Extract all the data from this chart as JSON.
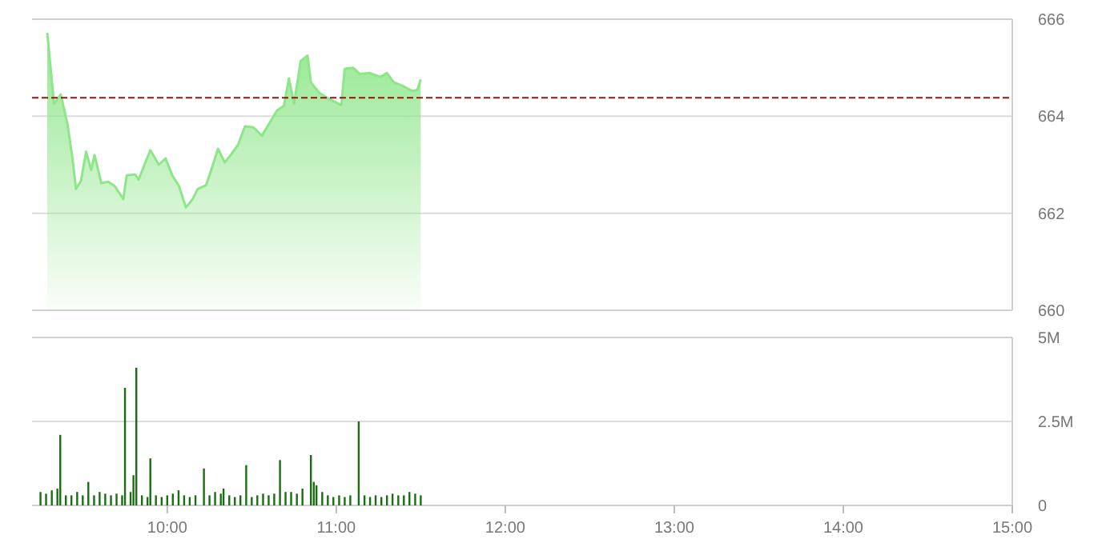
{
  "chart_data": [
    {
      "type": "area",
      "xlim": [
        9.2,
        15
      ],
      "ylim": [
        660,
        666
      ],
      "yticks": [
        660,
        662,
        664,
        666
      ],
      "grid": "y",
      "tick_labels": "y",
      "x": [
        9.29,
        9.33,
        9.37,
        9.41,
        9.44,
        9.46,
        9.49,
        9.52,
        9.55,
        9.57,
        9.61,
        9.65,
        9.69,
        9.74,
        9.76,
        9.81,
        9.83,
        9.9,
        9.95,
        9.99,
        10.03,
        10.07,
        10.11,
        10.15,
        10.18,
        10.23,
        10.26,
        10.3,
        10.34,
        10.38,
        10.42,
        10.46,
        10.51,
        10.56,
        10.6,
        10.65,
        10.69,
        10.72,
        10.75,
        10.79,
        10.83,
        10.85,
        10.9,
        10.95,
        11.03,
        11.05,
        11.1,
        11.14,
        11.2,
        11.26,
        11.3,
        11.34,
        11.39,
        11.45,
        11.48,
        11.5
      ],
      "series": [
        {
          "color": "#8ee68a",
          "values": [
            665.72,
            664.26,
            664.45,
            663.83,
            663.11,
            662.5,
            662.67,
            663.27,
            662.89,
            663.2,
            662.62,
            662.65,
            662.56,
            662.29,
            662.78,
            662.8,
            662.69,
            663.3,
            663.0,
            663.13,
            662.78,
            662.56,
            662.12,
            662.29,
            662.5,
            662.58,
            662.89,
            663.33,
            663.05,
            663.22,
            663.42,
            663.79,
            663.77,
            663.6,
            663.83,
            664.12,
            664.21,
            664.78,
            664.26,
            665.14,
            665.25,
            664.7,
            664.48,
            664.37,
            664.23,
            664.98,
            665.0,
            664.87,
            664.89,
            664.81,
            664.89,
            664.7,
            664.63,
            664.52,
            664.54,
            664.76
          ]
        }
      ],
      "ref_lines": [
        {
          "axis": "y",
          "value": 664.38,
          "color": "#a01010",
          "line_style": "dashed"
        }
      ]
    },
    {
      "type": "bar",
      "xlim": [
        9.2,
        15
      ],
      "xticks": [
        {
          "value": 10,
          "label": "10:00"
        },
        {
          "value": 11,
          "label": "11:00"
        },
        {
          "value": 12,
          "label": "12:00"
        },
        {
          "value": 13,
          "label": "13:00"
        },
        {
          "value": 14,
          "label": "14:00"
        },
        {
          "value": 15,
          "label": "15:00"
        }
      ],
      "ylim": [
        0,
        5
      ],
      "yticks": [
        {
          "value": 0,
          "label": "0"
        },
        {
          "value": 2.5,
          "label": "2.5M"
        },
        {
          "value": 5,
          "label": "5M"
        }
      ],
      "grid": "y",
      "x": [
        9.25,
        9.283,
        9.317,
        9.35,
        9.367,
        9.4,
        9.433,
        9.467,
        9.5,
        9.533,
        9.567,
        9.6,
        9.633,
        9.667,
        9.7,
        9.733,
        9.75,
        9.783,
        9.8,
        9.817,
        9.85,
        9.883,
        9.9,
        9.933,
        9.967,
        10.0,
        10.033,
        10.067,
        10.1,
        10.133,
        10.167,
        10.217,
        10.25,
        10.283,
        10.317,
        10.333,
        10.367,
        10.4,
        10.433,
        10.467,
        10.5,
        10.533,
        10.567,
        10.6,
        10.633,
        10.667,
        10.7,
        10.733,
        10.767,
        10.8,
        10.85,
        10.867,
        10.883,
        10.917,
        10.95,
        10.983,
        11.017,
        11.05,
        11.083,
        11.133,
        11.167,
        11.2,
        11.233,
        11.267,
        11.3,
        11.333,
        11.367,
        11.4,
        11.433,
        11.467,
        11.5
      ],
      "series": [
        {
          "color": "#1a6e12",
          "values": [
            0.4,
            0.35,
            0.45,
            0.5,
            2.1,
            0.3,
            0.3,
            0.4,
            0.3,
            0.7,
            0.3,
            0.4,
            0.35,
            0.3,
            0.35,
            0.3,
            3.5,
            0.4,
            0.9,
            4.1,
            0.3,
            0.25,
            1.4,
            0.3,
            0.25,
            0.3,
            0.35,
            0.45,
            0.3,
            0.25,
            0.3,
            1.1,
            0.3,
            0.4,
            0.35,
            0.5,
            0.3,
            0.25,
            0.3,
            1.2,
            0.25,
            0.3,
            0.35,
            0.3,
            0.35,
            1.35,
            0.4,
            0.4,
            0.35,
            0.5,
            1.5,
            0.7,
            0.6,
            0.4,
            0.3,
            0.25,
            0.3,
            0.25,
            0.3,
            2.5,
            0.3,
            0.25,
            0.3,
            0.25,
            0.3,
            0.35,
            0.3,
            0.3,
            0.4,
            0.35,
            0.3
          ]
        }
      ]
    }
  ]
}
